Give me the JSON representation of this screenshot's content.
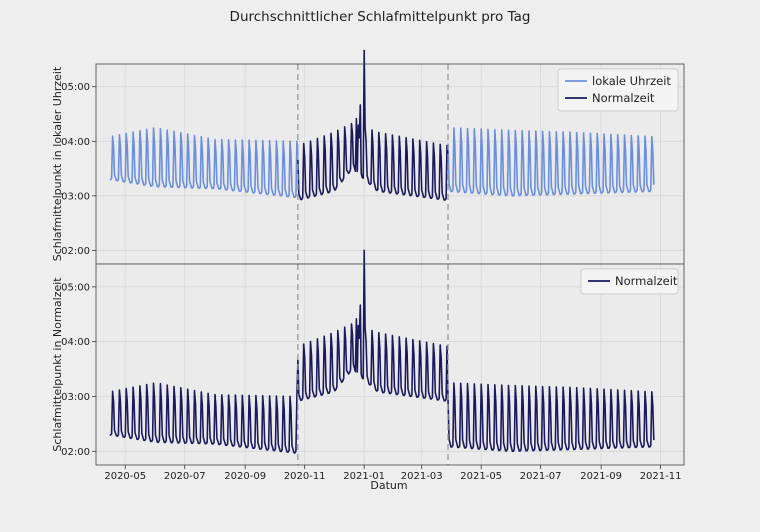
{
  "chart_data": {
    "type": "line",
    "title": "Durchschnittlicher Schlafmittelpunkt pro Tag",
    "xlabel": "Datum",
    "x_range": [
      "2020-04-15",
      "2021-10-25"
    ],
    "x_ticks": [
      "2020-05",
      "2020-07",
      "2020-09",
      "2020-11",
      "2021-01",
      "2021-03",
      "2021-05",
      "2021-07",
      "2021-09",
      "2021-11"
    ],
    "vlines": [
      "2020-10-25",
      "2021-03-28"
    ],
    "grid": true,
    "panels": [
      {
        "ylabel": "Schlafmittelpunkt in lokaler Uhrzeit",
        "ylim": [
          "01:45",
          "05:25"
        ],
        "y_ticks": [
          "02:00",
          "03:00",
          "04:00",
          "05:00"
        ],
        "legend": {
          "position": "top-right",
          "entries": [
            "lokale Uhrzeit",
            "Normalzeit"
          ]
        },
        "series": [
          {
            "name": "lokale Uhrzeit",
            "color": "#6a8fdc",
            "segments": [
              [
                "2020-04-15",
                "2020-10-25"
              ],
              [
                "2021-03-28",
                "2021-10-25"
              ]
            ],
            "anchors": [
              {
                "date": "2020-04-15",
                "low": "03:18",
                "high": "04:05"
              },
              {
                "date": "2020-06-01",
                "low": "03:10",
                "high": "04:15"
              },
              {
                "date": "2020-08-01",
                "low": "03:08",
                "high": "04:02"
              },
              {
                "date": "2020-10-25",
                "low": "02:58",
                "high": "04:00"
              },
              {
                "date": "2021-03-28",
                "low": "03:05",
                "high": "04:15"
              },
              {
                "date": "2021-06-01",
                "low": "03:00",
                "high": "04:12"
              },
              {
                "date": "2021-08-01",
                "low": "03:02",
                "high": "04:10"
              },
              {
                "date": "2021-10-25",
                "low": "03:05",
                "high": "04:05"
              }
            ]
          },
          {
            "name": "Normalzeit",
            "color": "#1a1a5e",
            "segments": [
              [
                "2020-10-25",
                "2021-03-28"
              ]
            ],
            "anchors": [
              {
                "date": "2020-10-25",
                "low": "02:55",
                "high": "03:55"
              },
              {
                "date": "2020-12-01",
                "low": "03:05",
                "high": "04:10"
              },
              {
                "date": "2020-12-20",
                "low": "03:30",
                "high": "04:20"
              },
              {
                "date": "2021-01-15",
                "low": "03:05",
                "high": "04:10"
              },
              {
                "date": "2021-03-28",
                "low": "02:55",
                "high": "03:55"
              }
            ],
            "spikes": [
              {
                "date": "2020-12-24",
                "value": "04:25"
              },
              {
                "date": "2020-12-28",
                "value": "04:40"
              },
              {
                "date": "2021-01-01",
                "value": "05:40"
              }
            ]
          }
        ]
      },
      {
        "ylabel": "Schlafmittelpunkt in Normalzeit",
        "ylim": [
          "01:45",
          "05:25"
        ],
        "y_ticks": [
          "02:00",
          "03:00",
          "04:00",
          "05:00"
        ],
        "legend": {
          "position": "top-right",
          "entries": [
            "Normalzeit"
          ]
        },
        "series": [
          {
            "name": "Normalzeit",
            "color": "#1a1a5e",
            "segments": [
              [
                "2020-04-15",
                "2021-10-25"
              ]
            ],
            "anchors": [
              {
                "date": "2020-04-15",
                "low": "02:18",
                "high": "03:05"
              },
              {
                "date": "2020-06-01",
                "low": "02:10",
                "high": "03:15"
              },
              {
                "date": "2020-08-01",
                "low": "02:08",
                "high": "03:02"
              },
              {
                "date": "2020-10-24",
                "low": "01:58",
                "high": "03:00"
              },
              {
                "date": "2020-10-25",
                "low": "02:55",
                "high": "03:55"
              },
              {
                "date": "2020-12-01",
                "low": "03:05",
                "high": "04:10"
              },
              {
                "date": "2020-12-20",
                "low": "03:30",
                "high": "04:20"
              },
              {
                "date": "2021-01-15",
                "low": "03:05",
                "high": "04:10"
              },
              {
                "date": "2021-03-27",
                "low": "02:55",
                "high": "03:55"
              },
              {
                "date": "2021-03-28",
                "low": "02:05",
                "high": "03:15"
              },
              {
                "date": "2021-06-01",
                "low": "02:00",
                "high": "03:12"
              },
              {
                "date": "2021-08-01",
                "low": "02:02",
                "high": "03:10"
              },
              {
                "date": "2021-10-25",
                "low": "02:05",
                "high": "03:05"
              }
            ],
            "spikes": [
              {
                "date": "2020-12-24",
                "value": "04:25"
              },
              {
                "date": "2020-12-28",
                "value": "04:40"
              },
              {
                "date": "2021-01-01",
                "value": "05:40"
              }
            ]
          }
        ]
      }
    ]
  }
}
